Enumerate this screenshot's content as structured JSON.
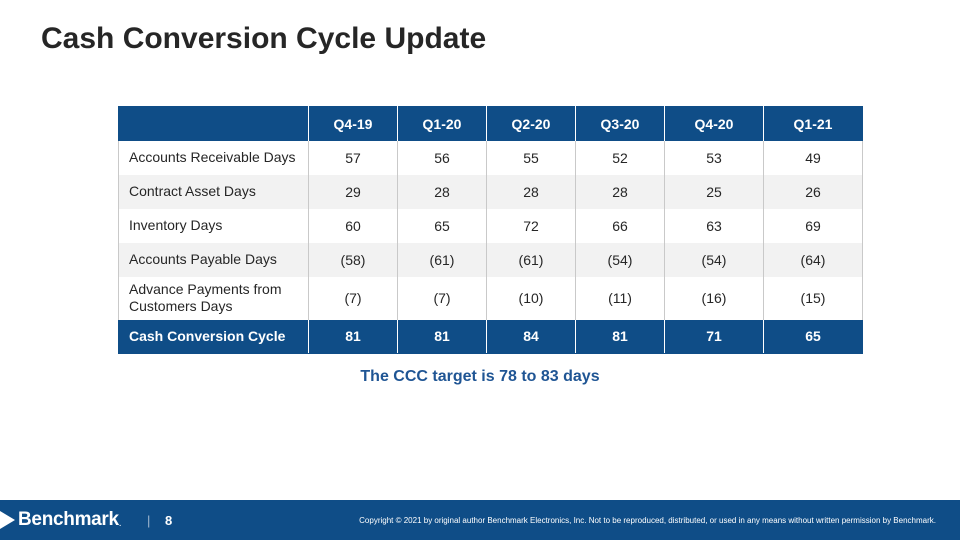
{
  "title": "Cash Conversion Cycle Update",
  "table": {
    "columns": [
      "Q4-19",
      "Q1-20",
      "Q2-20",
      "Q3-20",
      "Q4-20",
      "Q1-21"
    ],
    "rows": [
      {
        "label": "Accounts Receivable Days",
        "values": [
          "57",
          "56",
          "55",
          "52",
          "53",
          "49"
        ]
      },
      {
        "label": "Contract Asset Days",
        "values": [
          "29",
          "28",
          "28",
          "28",
          "25",
          "26"
        ]
      },
      {
        "label": "Inventory Days",
        "values": [
          "60",
          "65",
          "72",
          "66",
          "63",
          "69"
        ]
      },
      {
        "label": "Accounts Payable Days",
        "values": [
          "(58)",
          "(61)",
          "(61)",
          "(54)",
          "(54)",
          "(64)"
        ]
      },
      {
        "label": "Advance Payments from Customers Days",
        "values": [
          "(7)",
          "(7)",
          "(10)",
          "(11)",
          "(16)",
          "(15)"
        ]
      }
    ],
    "total": {
      "label": "Cash Conversion Cycle",
      "values": [
        "81",
        "81",
        "84",
        "81",
        "71",
        "65"
      ]
    }
  },
  "note": "The CCC target is 78 to 83 days",
  "footer": {
    "brand": "Benchmark",
    "separator": "|",
    "page_number": "8",
    "copyright": "Copyright © 2021 by original author Benchmark Electronics, Inc. Not to be reproduced, distributed, or used in any means without written permission by Benchmark."
  },
  "colors": {
    "brand_blue": "#0f4d87",
    "note_blue": "#1f5594",
    "band_gray": "#f2f2f2"
  }
}
